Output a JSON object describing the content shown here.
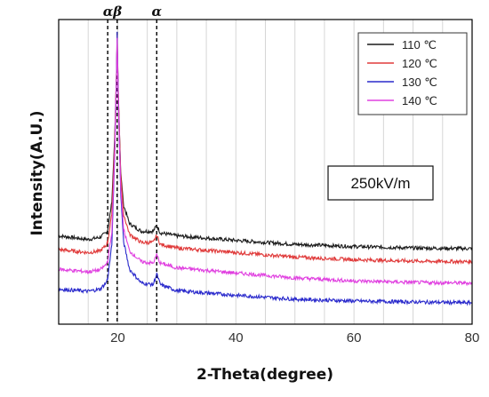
{
  "chart_data": {
    "type": "line",
    "title": "",
    "xlabel": "2-Theta(degree)",
    "ylabel": "Intensity(A.U.)",
    "xlim": [
      10,
      80
    ],
    "ylim": [
      0,
      1
    ],
    "xticks": [
      20,
      40,
      60,
      80
    ],
    "grid": "vertical",
    "legend_position": "top-right",
    "annotations": [
      {
        "text": "αβ",
        "x": 19.1
      },
      {
        "text": "α",
        "x": 26.6
      }
    ],
    "reference_lines_x": [
      18.3,
      19.9,
      26.6
    ],
    "field_label": "250kV/m",
    "series": [
      {
        "name": "110 ℃",
        "color": "#1a1a1a",
        "points": [
          [
            10,
            0.29
          ],
          [
            15,
            0.278
          ],
          [
            17,
            0.285
          ],
          [
            18,
            0.3
          ],
          [
            18.3,
            0.31
          ],
          [
            19,
            0.4
          ],
          [
            19.5,
            0.62
          ],
          [
            19.8,
            0.83
          ],
          [
            19.9,
            0.93
          ],
          [
            20.1,
            0.75
          ],
          [
            20.5,
            0.5
          ],
          [
            21,
            0.39
          ],
          [
            22,
            0.33
          ],
          [
            24,
            0.305
          ],
          [
            26,
            0.305
          ],
          [
            26.6,
            0.325
          ],
          [
            27.2,
            0.3
          ],
          [
            30,
            0.29
          ],
          [
            40,
            0.275
          ],
          [
            50,
            0.262
          ],
          [
            60,
            0.255
          ],
          [
            70,
            0.25
          ],
          [
            80,
            0.248
          ]
        ]
      },
      {
        "name": "120 ℃",
        "color": "#e03b3b",
        "points": [
          [
            10,
            0.245
          ],
          [
            15,
            0.235
          ],
          [
            17,
            0.24
          ],
          [
            18,
            0.258
          ],
          [
            18.3,
            0.27
          ],
          [
            19,
            0.36
          ],
          [
            19.5,
            0.6
          ],
          [
            19.8,
            0.84
          ],
          [
            19.9,
            0.95
          ],
          [
            20.1,
            0.76
          ],
          [
            20.5,
            0.49
          ],
          [
            21,
            0.36
          ],
          [
            22,
            0.295
          ],
          [
            24,
            0.268
          ],
          [
            26,
            0.268
          ],
          [
            26.6,
            0.292
          ],
          [
            27.2,
            0.262
          ],
          [
            30,
            0.25
          ],
          [
            40,
            0.235
          ],
          [
            50,
            0.22
          ],
          [
            60,
            0.212
          ],
          [
            70,
            0.207
          ],
          [
            80,
            0.205
          ]
        ]
      },
      {
        "name": "130 ℃",
        "color": "#2a2acc",
        "points": [
          [
            10,
            0.115
          ],
          [
            15,
            0.108
          ],
          [
            17,
            0.115
          ],
          [
            18,
            0.135
          ],
          [
            18.3,
            0.15
          ],
          [
            19,
            0.26
          ],
          [
            19.5,
            0.56
          ],
          [
            19.8,
            0.83
          ],
          [
            19.9,
            0.96
          ],
          [
            20.1,
            0.74
          ],
          [
            20.5,
            0.43
          ],
          [
            21,
            0.27
          ],
          [
            22,
            0.18
          ],
          [
            24,
            0.135
          ],
          [
            26,
            0.13
          ],
          [
            26.6,
            0.165
          ],
          [
            27.2,
            0.13
          ],
          [
            30,
            0.11
          ],
          [
            40,
            0.095
          ],
          [
            50,
            0.082
          ],
          [
            60,
            0.076
          ],
          [
            70,
            0.073
          ],
          [
            80,
            0.07
          ]
        ]
      },
      {
        "name": "140 ℃",
        "color": "#e040e0",
        "points": [
          [
            10,
            0.18
          ],
          [
            15,
            0.172
          ],
          [
            17,
            0.178
          ],
          [
            18,
            0.195
          ],
          [
            18.3,
            0.208
          ],
          [
            19,
            0.3
          ],
          [
            19.5,
            0.57
          ],
          [
            19.8,
            0.82
          ],
          [
            19.9,
            0.94
          ],
          [
            20.1,
            0.73
          ],
          [
            20.5,
            0.45
          ],
          [
            21,
            0.31
          ],
          [
            22,
            0.24
          ],
          [
            24,
            0.205
          ],
          [
            26,
            0.2
          ],
          [
            26.6,
            0.228
          ],
          [
            27.2,
            0.2
          ],
          [
            30,
            0.185
          ],
          [
            40,
            0.168
          ],
          [
            50,
            0.152
          ],
          [
            60,
            0.142
          ],
          [
            70,
            0.137
          ],
          [
            80,
            0.135
          ]
        ]
      }
    ]
  }
}
